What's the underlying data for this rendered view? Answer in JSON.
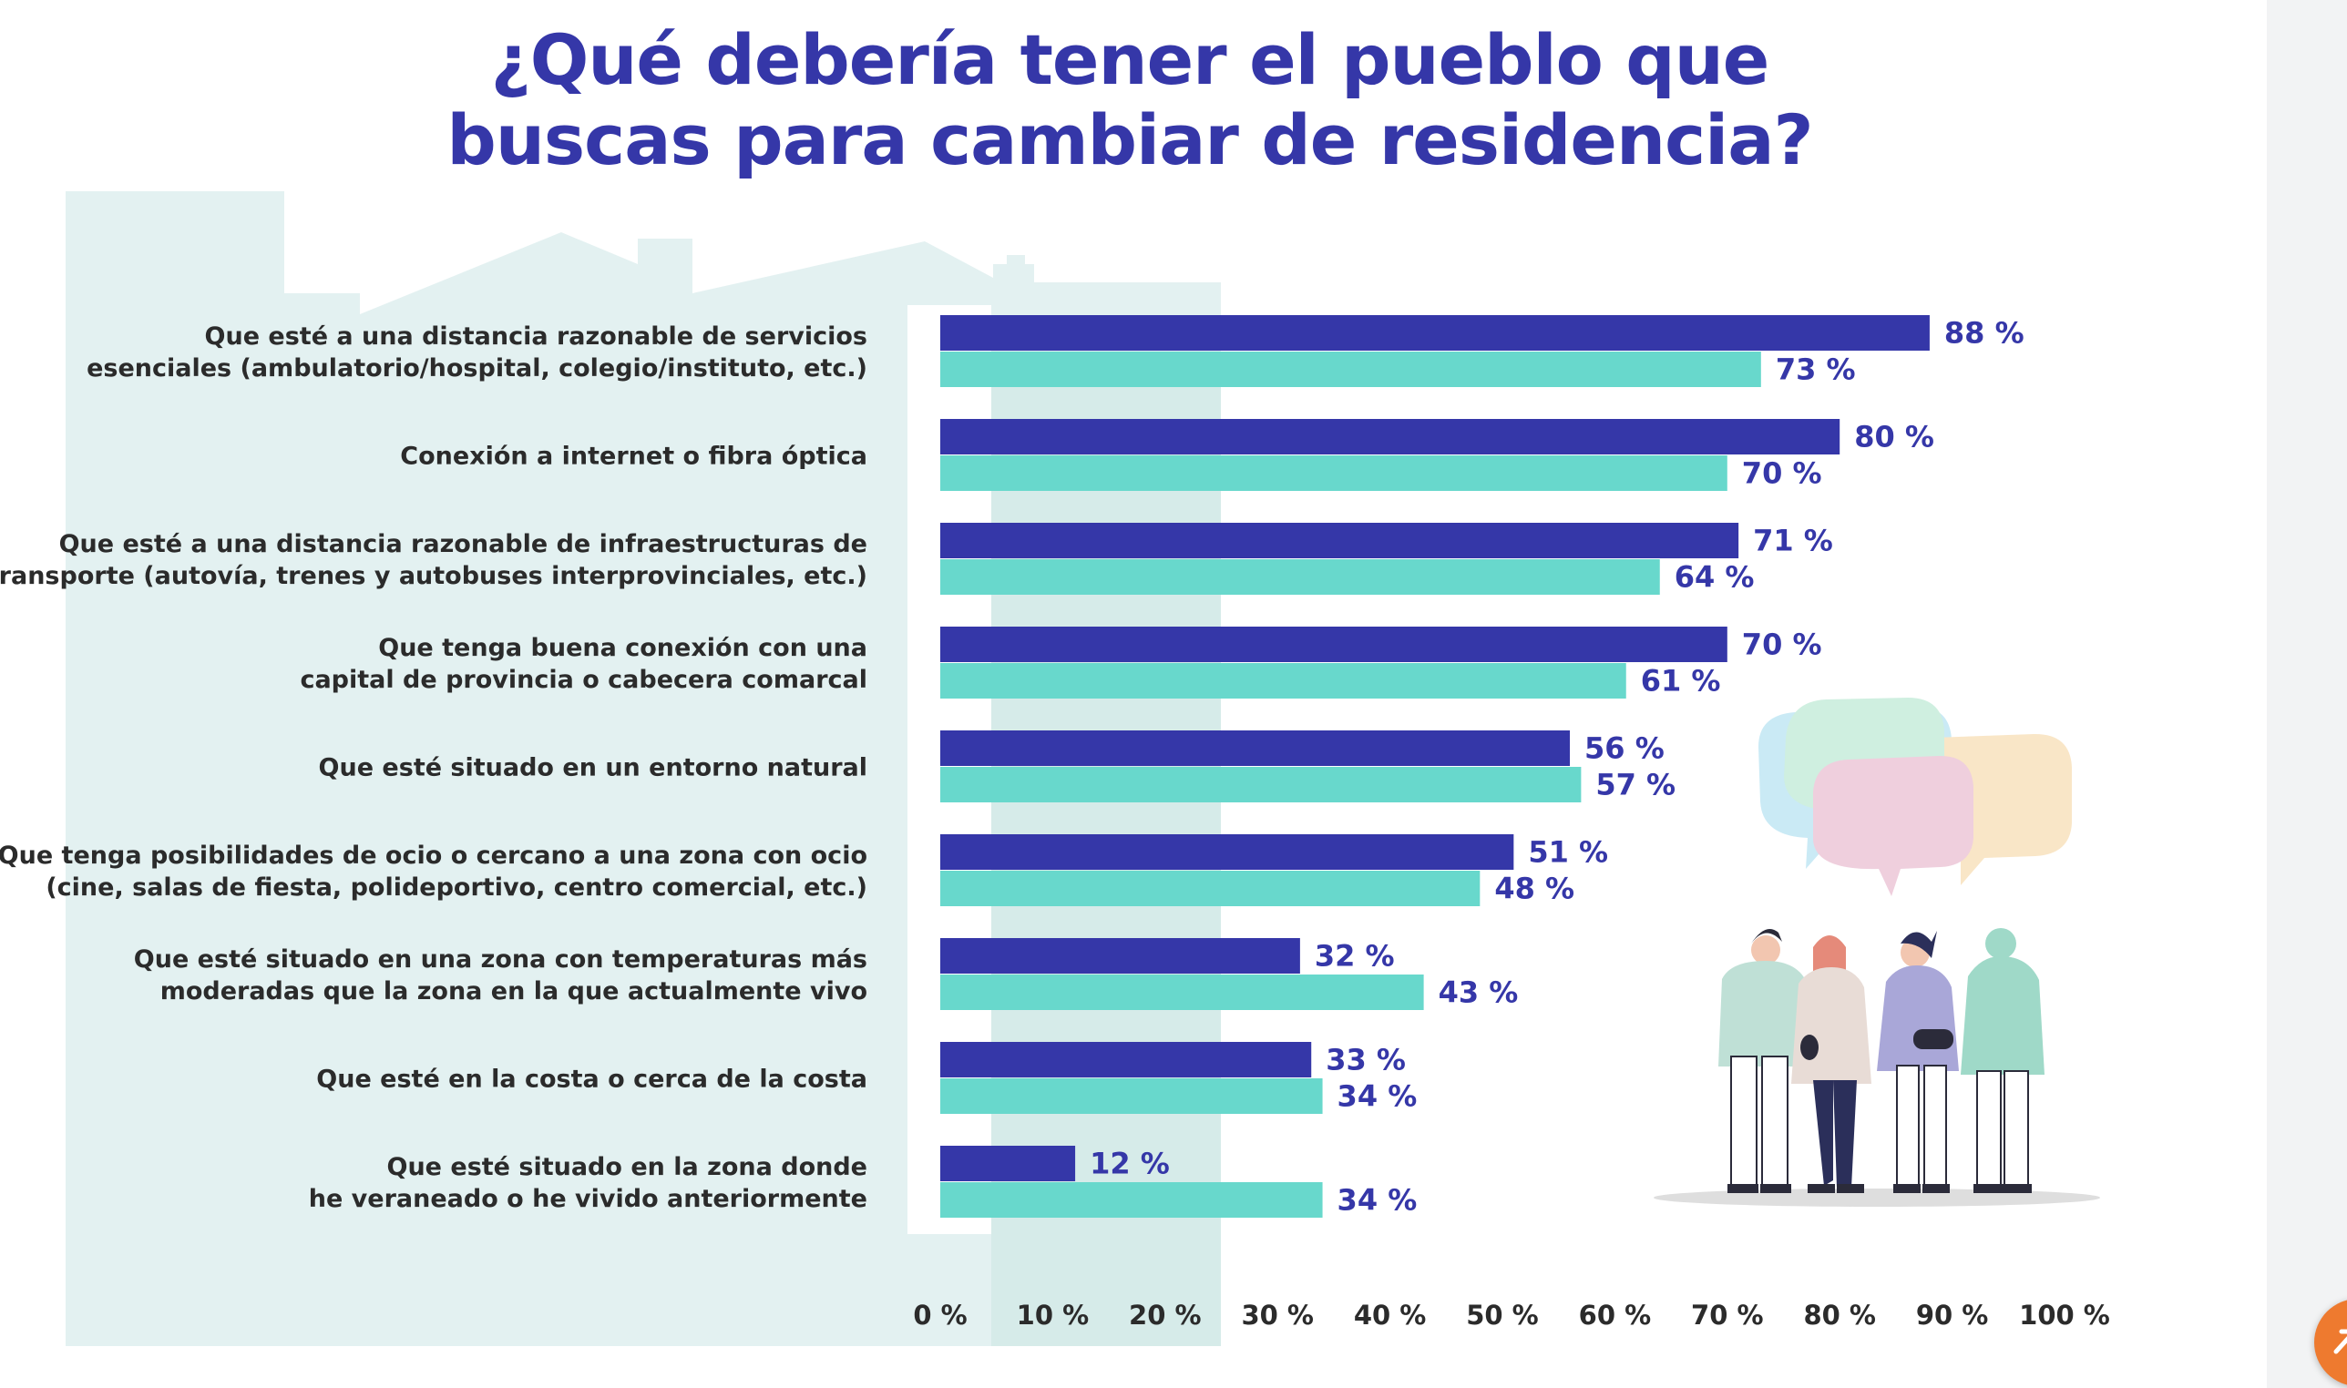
{
  "title_line1": "¿Qué debería tener el pueblo que",
  "title_line2": "buscas para cambiar de residencia?",
  "colors": {
    "series_a": "#3537a8",
    "series_b": "#68d8cc",
    "value_text": "#3537a8",
    "title": "#3537a8",
    "background_house": "#e3f1f1",
    "background_column": "#d6ebe9",
    "scroll_button": "#ee7a2f"
  },
  "icons": {
    "scroll_button": "arrow-up-icon",
    "illustration": "group-of-people-illustration",
    "speech": "speech-bubbles-illustration"
  },
  "chart_data": {
    "type": "bar",
    "orientation": "horizontal",
    "title": "¿Qué debería tener el pueblo que buscas para cambiar de residencia?",
    "categories": [
      [
        "Que esté a una distancia razonable de servicios",
        "esenciales (ambulatorio/hospital, colegio/instituto, etc.)"
      ],
      [
        "Conexión a internet o fibra óptica"
      ],
      [
        "Que esté a una distancia razonable de infraestructuras de",
        "transporte (autovía, trenes y autobuses interprovinciales, etc.)"
      ],
      [
        "Que tenga buena conexión con una",
        "capital de provincia o cabecera comarcal"
      ],
      [
        "Que esté situado en un entorno natural"
      ],
      [
        "Que tenga posibilidades de ocio o cercano a una zona con ocio",
        "(cine, salas de fiesta, polideportivo, centro comercial, etc.)"
      ],
      [
        "Que esté situado en una zona con temperaturas más",
        "moderadas que la zona en la que actualmente vivo"
      ],
      [
        "Que esté en la costa o cerca de la costa"
      ],
      [
        "Que esté situado en la zona donde",
        "he veraneado o he vivido anteriormente"
      ]
    ],
    "series": [
      {
        "values": [
          88,
          80,
          71,
          70,
          56,
          51,
          32,
          33,
          12
        ],
        "labels": [
          "88 %",
          "80 %",
          "71 %",
          "70 %",
          "56 %",
          "51 %",
          "32 %",
          "33 %",
          "12 %"
        ],
        "color": "#3537a8"
      },
      {
        "values": [
          73,
          70,
          64,
          61,
          57,
          48,
          43,
          34,
          34
        ],
        "labels": [
          "73 %",
          "70 %",
          "64 %",
          "61 %",
          "57 %",
          "48 %",
          "43 %",
          "34 %",
          "34 %"
        ],
        "color": "#68d8cc"
      }
    ],
    "xlim": [
      0,
      100
    ],
    "xticks": [
      0,
      10,
      20,
      30,
      40,
      50,
      60,
      70,
      80,
      90,
      100
    ],
    "xtick_labels": [
      "0 %",
      "10 %",
      "20 %",
      "30 %",
      "40 %",
      "50 %",
      "60 %",
      "70 %",
      "80 %",
      "90 %",
      "100 %"
    ],
    "grid": false,
    "legend": "none"
  }
}
